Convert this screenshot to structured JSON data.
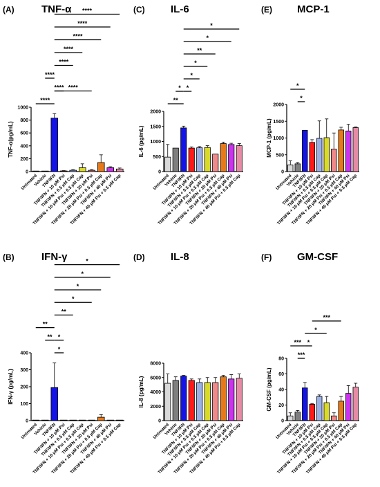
{
  "categories": [
    "Untreated",
    "Vehicle",
    "TNF/IFN",
    "TNF/IFN + 10 μM Psi",
    "TNF/IFN + 0.5 μM Cap",
    "TNF/IFN + 10 μM Psi + 0.5 μM Cap",
    "TNF/IFN + 20 μM Psi",
    "TNF/IFN + 20 μM Psi + 0.5 μM Cap",
    "TNF/IFN + 40 μM Psi",
    "TNF/IFN + 40 μM Psi + 0.5 μM Cap"
  ],
  "colors": [
    "#d9d9d9",
    "#7f7f7f",
    "#1414e6",
    "#ff1a1a",
    "#9bb1e6",
    "#d9d92a",
    "#f08a8a",
    "#e67a1a",
    "#cc33ee",
    "#e68aa6"
  ],
  "chart_data": [
    {
      "type": "bar",
      "panel": "(A)",
      "title": "TNF-α",
      "ylabel": "TNF-α(pg/mL)",
      "ylim": [
        0,
        1000
      ],
      "yticks": [
        0,
        200,
        400,
        600,
        800,
        1000
      ],
      "values": [
        0,
        0,
        830,
        10,
        20,
        60,
        20,
        140,
        60,
        40
      ],
      "errors": [
        0,
        0,
        70,
        5,
        10,
        60,
        10,
        120,
        15,
        15
      ],
      "significance": [
        {
          "from": 0,
          "to": 2,
          "label": "****"
        },
        {
          "from": 2,
          "to": 3,
          "label": "****"
        },
        {
          "from": 2,
          "to": 6,
          "label": "****"
        },
        {
          "from": 1,
          "to": 2,
          "label": "****"
        },
        {
          "from": 2,
          "to": 4,
          "label": "****"
        },
        {
          "from": 2,
          "to": 5,
          "label": "****"
        },
        {
          "from": 2,
          "to": 7,
          "label": "****"
        },
        {
          "from": 2,
          "to": 8,
          "label": "****"
        },
        {
          "from": 2,
          "to": 9,
          "label": "****"
        }
      ]
    },
    {
      "type": "bar",
      "panel": "(C)",
      "title": "IL-6",
      "ylabel": "IL-6 (pg/mL)",
      "ylim": [
        0,
        2000
      ],
      "yticks": [
        0,
        500,
        1000,
        1500,
        2000
      ],
      "values": [
        480,
        780,
        1450,
        780,
        790,
        800,
        580,
        930,
        900,
        860
      ],
      "errors": [
        420,
        0,
        60,
        40,
        40,
        60,
        0,
        50,
        40,
        70
      ],
      "significance": [
        {
          "from": 0,
          "to": 2,
          "label": "**"
        },
        {
          "from": 2,
          "to": 3,
          "label": "*"
        },
        {
          "from": 1,
          "to": 2,
          "label": "*"
        },
        {
          "from": 2,
          "to": 4,
          "label": "*"
        },
        {
          "from": 2,
          "to": 5,
          "label": "*"
        },
        {
          "from": 2,
          "to": 6,
          "label": "**"
        },
        {
          "from": 2,
          "to": 8,
          "label": "*"
        },
        {
          "from": 2,
          "to": 9,
          "label": "*"
        }
      ]
    },
    {
      "type": "bar",
      "panel": "(E)",
      "title": "MCP-1",
      "ylabel": "MCP-1 (pg/mL)",
      "ylim": [
        0,
        2000
      ],
      "yticks": [
        0,
        500,
        1000,
        1500,
        2000
      ],
      "values": [
        200,
        230,
        1230,
        870,
        990,
        1010,
        670,
        1240,
        1210,
        1310
      ],
      "errors": [
        120,
        40,
        0,
        80,
        520,
        560,
        480,
        80,
        200,
        20
      ],
      "significance": [
        {
          "from": 1,
          "to": 2,
          "label": "*"
        },
        {
          "from": 0,
          "to": 2,
          "label": "*"
        }
      ]
    },
    {
      "type": "bar",
      "panel": "(B)",
      "title": "IFN-γ",
      "ylabel": "IFN-γ (pg/mL)",
      "ylim": [
        0,
        400
      ],
      "yticks": [
        0,
        100,
        200,
        300,
        400
      ],
      "values": [
        0,
        0,
        195,
        3,
        0,
        0,
        0,
        20,
        3,
        3
      ],
      "errors": [
        0,
        0,
        145,
        0,
        0,
        0,
        0,
        15,
        0,
        0
      ],
      "significance": [
        {
          "from": 1,
          "to": 2,
          "label": "**"
        },
        {
          "from": 2,
          "to": 3,
          "label": "*"
        },
        {
          "from": 0,
          "to": 2,
          "label": "**"
        },
        {
          "from": 2,
          "to": 3,
          "label": "*"
        },
        {
          "from": 2,
          "to": 4,
          "label": "**"
        },
        {
          "from": 2,
          "to": 6,
          "label": "*"
        },
        {
          "from": 2,
          "to": 7,
          "label": "*"
        },
        {
          "from": 2,
          "to": 8,
          "label": "*"
        },
        {
          "from": 2,
          "to": 9,
          "label": "*"
        }
      ]
    },
    {
      "type": "bar",
      "panel": "(D)",
      "title": "IL-8",
      "ylabel": "IL-8 (pg/mL)",
      "ylim": [
        0,
        8000
      ],
      "yticks": [
        0,
        2000,
        4000,
        6000,
        8000
      ],
      "values": [
        5200,
        5600,
        6200,
        5600,
        5300,
        5300,
        5300,
        6100,
        5800,
        5900
      ],
      "errors": [
        1300,
        500,
        100,
        200,
        500,
        700,
        700,
        200,
        600,
        600
      ],
      "significance": []
    },
    {
      "type": "bar",
      "panel": "(F)",
      "title": "GM-CSF",
      "ylabel": "GM-CSF (pg/mL)",
      "ylim": [
        0,
        80
      ],
      "yticks": [
        0,
        20,
        40,
        60,
        80
      ],
      "values": [
        6,
        11,
        42,
        21,
        31,
        23,
        6,
        25,
        35,
        43
      ],
      "errors": [
        4,
        2,
        7,
        1,
        2,
        8,
        4,
        6,
        10,
        5
      ],
      "significance": [
        {
          "from": 1,
          "to": 2,
          "label": "***"
        },
        {
          "from": 2,
          "to": 3,
          "label": "*"
        },
        {
          "from": 0,
          "to": 2,
          "label": "***"
        },
        {
          "from": 2,
          "to": 5,
          "label": "*"
        },
        {
          "from": 3,
          "to": 7,
          "label": "***"
        }
      ]
    }
  ]
}
